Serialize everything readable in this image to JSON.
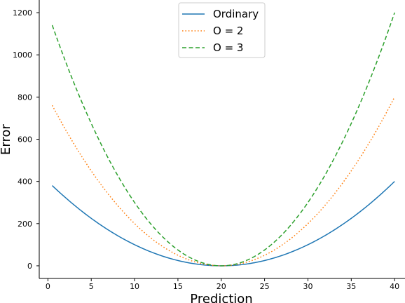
{
  "chart_data": {
    "type": "line",
    "title": "",
    "xlabel": "Prediction",
    "ylabel": "Error",
    "xlim": [
      -1,
      41.2
    ],
    "ylim": [
      -60,
      1260
    ],
    "xticks": [
      0,
      5,
      10,
      15,
      20,
      25,
      30,
      35,
      40
    ],
    "yticks": [
      0,
      200,
      400,
      600,
      800,
      1000,
      1200
    ],
    "grid": false,
    "legend_position": "top-center",
    "x_range": [
      0.5,
      40
    ],
    "series": [
      {
        "name": "Ordinary",
        "color": "#1f77b4",
        "linestyle": "solid",
        "formula": "(x-20)^2",
        "center": 20,
        "coefficient": 1
      },
      {
        "name": "O = 2",
        "color": "#ff7f0e",
        "linestyle": "dotted",
        "formula": "2*(x-20)^2",
        "center": 20,
        "coefficient": 2
      },
      {
        "name": "O = 3",
        "color": "#2ca02c",
        "linestyle": "dashed",
        "formula": "3*(x-20)^2",
        "center": 20,
        "coefficient": 3
      }
    ]
  }
}
